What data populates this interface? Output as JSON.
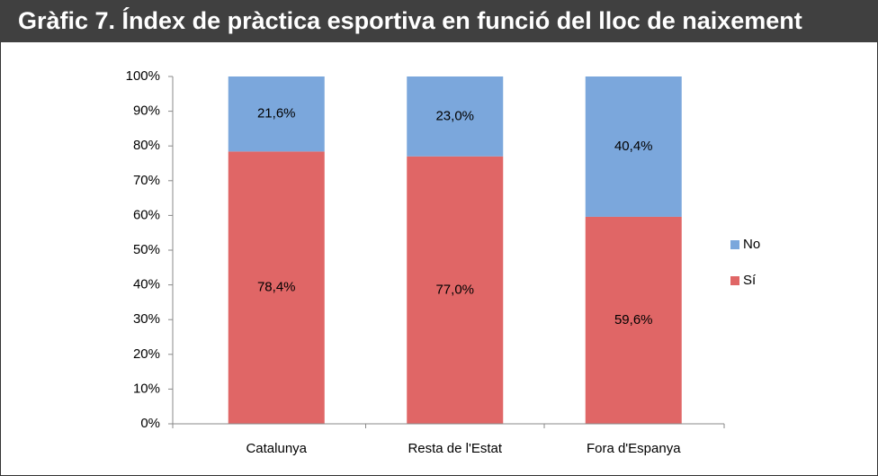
{
  "chart_data": {
    "type": "stacked_bar",
    "title": "Gràfic 7. Índex de pràctica esportiva en funció del lloc de naixement",
    "categories": [
      "Catalunya",
      "Resta de l'Estat",
      "Fora d'Espanya"
    ],
    "series": [
      {
        "name": "Sí",
        "color": "#e06666",
        "values": [
          78.4,
          77.0,
          59.6
        ],
        "value_labels": [
          "78,4%",
          "77,0%",
          "59,6%"
        ]
      },
      {
        "name": "No",
        "color": "#7ba7dc",
        "values": [
          21.6,
          23.0,
          40.4
        ],
        "value_labels": [
          "21,6%",
          "23,0%",
          "40,4%"
        ]
      }
    ],
    "ylim": [
      0,
      100
    ],
    "yticks": [
      {
        "value": 0,
        "label": "0%"
      },
      {
        "value": 10,
        "label": "10%"
      },
      {
        "value": 20,
        "label": "20%"
      },
      {
        "value": 30,
        "label": "30%"
      },
      {
        "value": 40,
        "label": "40%"
      },
      {
        "value": 50,
        "label": "50%"
      },
      {
        "value": 60,
        "label": "60%"
      },
      {
        "value": 70,
        "label": "70%"
      },
      {
        "value": 80,
        "label": "80%"
      },
      {
        "value": 90,
        "label": "90%"
      },
      {
        "value": 100,
        "label": "100%"
      }
    ],
    "legend": "right"
  }
}
